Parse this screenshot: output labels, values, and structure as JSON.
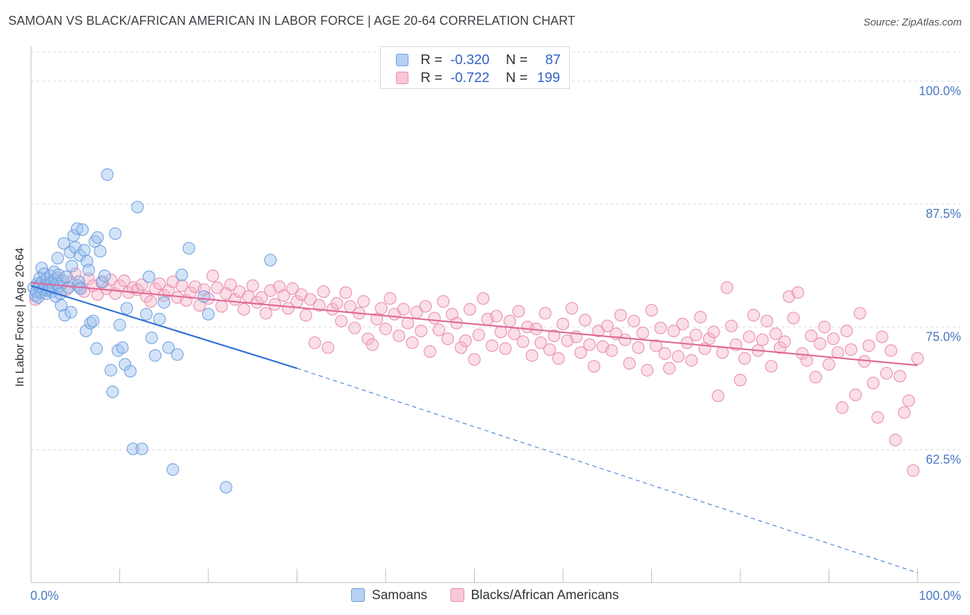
{
  "header": {
    "title": "SAMOAN VS BLACK/AFRICAN AMERICAN IN LABOR FORCE | AGE 20-64 CORRELATION CHART",
    "source": "Source: ZipAtlas.com"
  },
  "legend_top": {
    "rows": [
      {
        "r_label": "R =",
        "r_value": "-0.320",
        "n_label": "N =",
        "n_value": "87"
      },
      {
        "r_label": "R =",
        "r_value": "-0.722",
        "n_label": "N =",
        "n_value": "199"
      }
    ]
  },
  "legend_bottom": [
    "Samoans",
    "Blacks/African Americans"
  ],
  "colors": {
    "samoan_fill": "#9ec1ee",
    "samoan_stroke": "#6a9ee0",
    "samoan_line": "#2e6fd1",
    "black_fill": "#f5b8cb",
    "black_stroke": "#e98aa8",
    "black_line": "#e0689a",
    "tick_text": "#4a78c4",
    "grid": "#d9d9d9"
  },
  "chart_data": {
    "type": "scatter",
    "title": "SAMOAN VS BLACK/AFRICAN AMERICAN IN LABOR FORCE | AGE 20-64 CORRELATION CHART",
    "xlabel": "",
    "ylabel": "In Labor Force | Age 20-64",
    "xlim": [
      0,
      100
    ],
    "ylim": [
      49,
      103
    ],
    "y_ticks": [
      62.5,
      75.0,
      87.5,
      100.0
    ],
    "y_tick_labels": [
      "62.5%",
      "75.0%",
      "87.5%",
      "100.0%"
    ],
    "x_tick_labels": [
      "0.0%",
      "100.0%"
    ],
    "grid": true,
    "legend_placement": "top-center",
    "series": [
      {
        "name": "Samoans",
        "r": -0.32,
        "n": 87,
        "trend": {
          "x0": 0,
          "y0": 79.2,
          "x1": 30,
          "y1": 70.8,
          "dashed_to_x": 100,
          "dashed_to_y": 50.0
        },
        "points": [
          [
            0.3,
            79.0
          ],
          [
            0.5,
            78.2
          ],
          [
            0.6,
            78.6
          ],
          [
            0.7,
            79.4
          ],
          [
            0.8,
            78.0
          ],
          [
            0.9,
            79.1
          ],
          [
            1.0,
            80.0
          ],
          [
            1.1,
            78.5
          ],
          [
            1.2,
            81.0
          ],
          [
            1.3,
            79.6
          ],
          [
            1.4,
            78.8
          ],
          [
            1.5,
            80.4
          ],
          [
            1.6,
            79.2
          ],
          [
            1.7,
            78.4
          ],
          [
            1.8,
            79.9
          ],
          [
            1.9,
            78.7
          ],
          [
            2.0,
            79.3
          ],
          [
            2.1,
            78.9
          ],
          [
            2.2,
            80.2
          ],
          [
            2.3,
            79.5
          ],
          [
            2.4,
            78.6
          ],
          [
            2.5,
            79.0
          ],
          [
            2.6,
            80.6
          ],
          [
            2.7,
            79.8
          ],
          [
            2.8,
            78.1
          ],
          [
            2.9,
            79.4
          ],
          [
            3.0,
            82.0
          ],
          [
            3.1,
            80.3
          ],
          [
            3.2,
            79.1
          ],
          [
            3.3,
            78.4
          ],
          [
            3.4,
            77.2
          ],
          [
            3.6,
            79.7
          ],
          [
            3.7,
            83.5
          ],
          [
            3.8,
            76.2
          ],
          [
            4.0,
            80.1
          ],
          [
            4.2,
            79.0
          ],
          [
            4.4,
            82.6
          ],
          [
            4.5,
            76.5
          ],
          [
            4.6,
            81.2
          ],
          [
            4.8,
            84.3
          ],
          [
            5.0,
            83.1
          ],
          [
            5.2,
            85.0
          ],
          [
            5.3,
            79.2
          ],
          [
            5.4,
            79.6
          ],
          [
            5.5,
            82.3
          ],
          [
            5.6,
            78.9
          ],
          [
            5.8,
            84.9
          ],
          [
            6.0,
            82.8
          ],
          [
            6.2,
            74.6
          ],
          [
            6.3,
            81.7
          ],
          [
            6.5,
            80.8
          ],
          [
            6.7,
            75.4
          ],
          [
            7.0,
            75.6
          ],
          [
            7.2,
            83.7
          ],
          [
            7.4,
            72.8
          ],
          [
            7.5,
            84.1
          ],
          [
            7.8,
            82.7
          ],
          [
            8.0,
            79.6
          ],
          [
            8.3,
            80.2
          ],
          [
            8.6,
            90.5
          ],
          [
            9.0,
            70.6
          ],
          [
            9.2,
            68.4
          ],
          [
            9.5,
            84.5
          ],
          [
            9.8,
            72.6
          ],
          [
            10.0,
            75.2
          ],
          [
            10.3,
            72.9
          ],
          [
            10.6,
            71.2
          ],
          [
            10.8,
            76.9
          ],
          [
            11.2,
            70.5
          ],
          [
            11.5,
            62.6
          ],
          [
            12.0,
            87.2
          ],
          [
            12.5,
            62.6
          ],
          [
            13.0,
            76.3
          ],
          [
            13.3,
            80.1
          ],
          [
            13.6,
            73.9
          ],
          [
            14.0,
            72.1
          ],
          [
            14.5,
            75.8
          ],
          [
            15.0,
            77.5
          ],
          [
            15.5,
            72.9
          ],
          [
            16.0,
            60.5
          ],
          [
            16.5,
            72.2
          ],
          [
            17.0,
            80.3
          ],
          [
            17.8,
            83.0
          ],
          [
            19.5,
            78.1
          ],
          [
            20.0,
            76.3
          ],
          [
            22.0,
            58.7
          ],
          [
            27.0,
            81.8
          ]
        ]
      },
      {
        "name": "Blacks/African Americans",
        "r": -0.722,
        "n": 199,
        "trend": {
          "x0": 0,
          "y0": 79.5,
          "x1": 100,
          "y1": 71.1
        },
        "points": [
          [
            0.5,
            77.8
          ],
          [
            1.0,
            79.3
          ],
          [
            1.5,
            78.9
          ],
          [
            2.0,
            79.6
          ],
          [
            2.5,
            79.2
          ],
          [
            3.0,
            80.0
          ],
          [
            3.5,
            79.4
          ],
          [
            4.0,
            78.8
          ],
          [
            4.5,
            79.6
          ],
          [
            5.0,
            80.4
          ],
          [
            5.5,
            79.0
          ],
          [
            6.0,
            78.6
          ],
          [
            6.5,
            79.9
          ],
          [
            7.0,
            79.2
          ],
          [
            7.5,
            78.3
          ],
          [
            8.0,
            79.5
          ],
          [
            8.5,
            78.9
          ],
          [
            9.0,
            79.8
          ],
          [
            9.5,
            78.4
          ],
          [
            10.0,
            79.2
          ],
          [
            10.5,
            79.7
          ],
          [
            11.0,
            78.5
          ],
          [
            11.5,
            79.0
          ],
          [
            12.0,
            78.8
          ],
          [
            12.5,
            79.3
          ],
          [
            13.0,
            78.1
          ],
          [
            13.5,
            77.6
          ],
          [
            14.0,
            78.9
          ],
          [
            14.5,
            79.4
          ],
          [
            15.0,
            78.2
          ],
          [
            15.5,
            78.7
          ],
          [
            16.0,
            79.6
          ],
          [
            16.5,
            78.0
          ],
          [
            17.0,
            79.2
          ],
          [
            17.5,
            77.7
          ],
          [
            18.0,
            78.5
          ],
          [
            18.5,
            79.1
          ],
          [
            19.0,
            77.2
          ],
          [
            19.5,
            78.8
          ],
          [
            20.0,
            77.9
          ],
          [
            20.5,
            80.2
          ],
          [
            21.0,
            79.0
          ],
          [
            21.5,
            77.1
          ],
          [
            22.0,
            78.4
          ],
          [
            22.5,
            79.3
          ],
          [
            23.0,
            77.8
          ],
          [
            23.5,
            78.6
          ],
          [
            24.0,
            76.8
          ],
          [
            24.5,
            78.1
          ],
          [
            25.0,
            79.2
          ],
          [
            25.5,
            77.5
          ],
          [
            26.0,
            78.0
          ],
          [
            26.5,
            76.4
          ],
          [
            27.0,
            78.7
          ],
          [
            27.5,
            77.3
          ],
          [
            28.0,
            79.1
          ],
          [
            28.5,
            78.2
          ],
          [
            29.0,
            76.9
          ],
          [
            29.5,
            78.9
          ],
          [
            30.0,
            77.6
          ],
          [
            30.5,
            78.3
          ],
          [
            31.0,
            76.2
          ],
          [
            31.5,
            77.8
          ],
          [
            32.0,
            73.4
          ],
          [
            32.5,
            77.2
          ],
          [
            33.0,
            78.6
          ],
          [
            33.5,
            72.9
          ],
          [
            34.0,
            76.8
          ],
          [
            34.5,
            77.4
          ],
          [
            35.0,
            75.6
          ],
          [
            35.5,
            78.5
          ],
          [
            36.0,
            77.1
          ],
          [
            36.5,
            74.9
          ],
          [
            37.0,
            76.4
          ],
          [
            37.5,
            77.6
          ],
          [
            38.0,
            73.8
          ],
          [
            38.5,
            73.2
          ],
          [
            39.0,
            75.8
          ],
          [
            39.5,
            76.9
          ],
          [
            40.0,
            74.8
          ],
          [
            40.5,
            77.9
          ],
          [
            41.0,
            76.3
          ],
          [
            41.5,
            74.1
          ],
          [
            42.0,
            76.8
          ],
          [
            42.5,
            75.4
          ],
          [
            43.0,
            73.4
          ],
          [
            43.5,
            76.5
          ],
          [
            44.0,
            74.6
          ],
          [
            44.5,
            77.1
          ],
          [
            45.0,
            72.5
          ],
          [
            45.5,
            75.9
          ],
          [
            46.0,
            74.7
          ],
          [
            46.5,
            77.6
          ],
          [
            47.0,
            73.8
          ],
          [
            47.5,
            76.3
          ],
          [
            48.0,
            75.4
          ],
          [
            48.5,
            72.9
          ],
          [
            49.0,
            73.6
          ],
          [
            49.5,
            76.8
          ],
          [
            50.0,
            71.7
          ],
          [
            50.5,
            74.2
          ],
          [
            51.0,
            77.9
          ],
          [
            51.5,
            75.8
          ],
          [
            52.0,
            73.1
          ],
          [
            52.5,
            76.1
          ],
          [
            53.0,
            74.5
          ],
          [
            53.5,
            72.8
          ],
          [
            54.0,
            75.6
          ],
          [
            54.5,
            74.3
          ],
          [
            55.0,
            76.6
          ],
          [
            55.5,
            73.5
          ],
          [
            56.0,
            75.0
          ],
          [
            56.5,
            72.1
          ],
          [
            57.0,
            74.8
          ],
          [
            57.5,
            73.4
          ],
          [
            58.0,
            76.4
          ],
          [
            58.5,
            72.7
          ],
          [
            59.0,
            74.1
          ],
          [
            59.5,
            71.8
          ],
          [
            60.0,
            75.3
          ],
          [
            60.5,
            73.6
          ],
          [
            61.0,
            76.9
          ],
          [
            61.5,
            74.0
          ],
          [
            62.0,
            72.4
          ],
          [
            62.5,
            75.7
          ],
          [
            63.0,
            73.2
          ],
          [
            63.5,
            71.0
          ],
          [
            64.0,
            74.6
          ],
          [
            64.5,
            73.0
          ],
          [
            65.0,
            75.1
          ],
          [
            65.5,
            72.6
          ],
          [
            66.0,
            74.3
          ],
          [
            66.5,
            76.2
          ],
          [
            67.0,
            73.7
          ],
          [
            67.5,
            71.3
          ],
          [
            68.0,
            75.6
          ],
          [
            68.5,
            72.9
          ],
          [
            69.0,
            74.4
          ],
          [
            69.5,
            70.6
          ],
          [
            70.0,
            76.7
          ],
          [
            70.5,
            73.1
          ],
          [
            71.0,
            74.9
          ],
          [
            71.5,
            72.3
          ],
          [
            72.0,
            70.8
          ],
          [
            72.5,
            74.6
          ],
          [
            73.0,
            72.0
          ],
          [
            73.5,
            75.3
          ],
          [
            74.0,
            73.4
          ],
          [
            74.5,
            71.6
          ],
          [
            75.0,
            74.2
          ],
          [
            75.5,
            76.0
          ],
          [
            76.0,
            72.8
          ],
          [
            76.5,
            73.8
          ],
          [
            77.0,
            74.5
          ],
          [
            77.5,
            68.0
          ],
          [
            78.0,
            72.4
          ],
          [
            78.5,
            79.0
          ],
          [
            79.0,
            75.1
          ],
          [
            79.5,
            73.2
          ],
          [
            80.0,
            69.6
          ],
          [
            80.5,
            71.8
          ],
          [
            81.0,
            74.0
          ],
          [
            81.5,
            76.2
          ],
          [
            82.0,
            72.6
          ],
          [
            82.5,
            73.7
          ],
          [
            83.0,
            75.6
          ],
          [
            83.5,
            71.0
          ],
          [
            84.0,
            74.3
          ],
          [
            84.5,
            72.9
          ],
          [
            85.0,
            73.5
          ],
          [
            85.5,
            78.1
          ],
          [
            86.0,
            75.9
          ],
          [
            86.5,
            78.5
          ],
          [
            87.0,
            72.3
          ],
          [
            87.5,
            71.6
          ],
          [
            88.0,
            74.1
          ],
          [
            88.5,
            69.9
          ],
          [
            89.0,
            73.3
          ],
          [
            89.5,
            75.0
          ],
          [
            90.0,
            71.2
          ],
          [
            90.5,
            73.8
          ],
          [
            91.0,
            72.4
          ],
          [
            91.5,
            66.8
          ],
          [
            92.0,
            74.6
          ],
          [
            92.5,
            72.7
          ],
          [
            93.0,
            68.1
          ],
          [
            93.5,
            76.4
          ],
          [
            94.0,
            71.5
          ],
          [
            94.5,
            73.1
          ],
          [
            95.0,
            69.3
          ],
          [
            95.5,
            65.8
          ],
          [
            96.0,
            74.0
          ],
          [
            96.5,
            70.3
          ],
          [
            97.0,
            72.6
          ],
          [
            97.5,
            63.5
          ],
          [
            98.0,
            70.0
          ],
          [
            98.5,
            66.3
          ],
          [
            99.0,
            67.5
          ],
          [
            99.5,
            60.4
          ],
          [
            100.0,
            71.8
          ]
        ]
      }
    ]
  }
}
